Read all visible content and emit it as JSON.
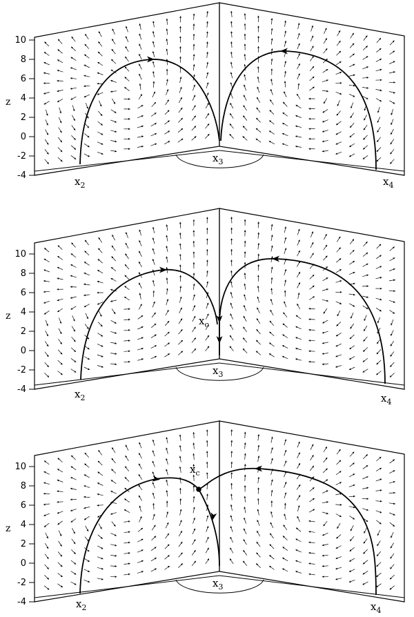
{
  "axis_label": "z",
  "z_ticks": [
    "10",
    "8",
    "6",
    "4",
    "2",
    "0",
    "-2",
    "-4"
  ],
  "panels": [
    {
      "labels": [
        {
          "base": "x",
          "sub": "2"
        },
        {
          "base": "x",
          "sub": "3"
        },
        {
          "base": "x",
          "sub": "4"
        }
      ],
      "has_critical_point": false
    },
    {
      "labels": [
        {
          "base": "x",
          "sub": "2"
        },
        {
          "base": "x",
          "sub": "3"
        },
        {
          "base": "x",
          "sub": "4"
        },
        {
          "base": "x",
          "sub": "c"
        }
      ],
      "has_critical_point": false
    },
    {
      "labels": [
        {
          "base": "x",
          "sub": "2"
        },
        {
          "base": "x",
          "sub": "3"
        },
        {
          "base": "x",
          "sub": "4"
        },
        {
          "base": "x",
          "sub": "c"
        }
      ],
      "has_critical_point": true
    }
  ],
  "colors": {
    "ink": "#000000",
    "background": "#ffffff"
  }
}
